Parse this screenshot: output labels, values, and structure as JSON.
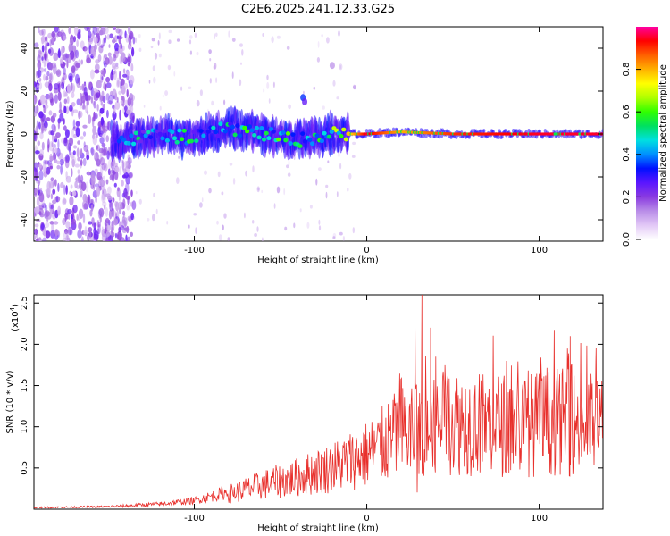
{
  "title": "C2E6.2025.241.12.33.G25",
  "chart_data": [
    {
      "type": "heatmap",
      "name": "spectrogram",
      "xlabel": "Height of straight line (km)",
      "ylabel": "Frequency (Hz)",
      "xlim": [
        -193,
        137
      ],
      "ylim": [
        -50,
        50
      ],
      "xticks": [
        -100,
        0,
        100
      ],
      "yticks": [
        -40,
        -20,
        0,
        20,
        40
      ],
      "grid": false,
      "colorbar": {
        "label": "Normalized spectral amplitude",
        "range": [
          0,
          1
        ],
        "ticks": [
          0.0,
          0.2,
          0.4,
          0.6,
          0.8
        ],
        "colors": [
          "#ffffff",
          "#e2c8f6",
          "#b98de8",
          "#8a3be0",
          "#5a16ff",
          "#0010ff",
          "#0090ff",
          "#00e0e0",
          "#00e060",
          "#30ff00",
          "#b0ff00",
          "#ffff00",
          "#ffb000",
          "#ff6000",
          "#ff0000",
          "#ff00a0"
        ]
      },
      "ridge": [
        {
          "x": -140,
          "freq": -3,
          "amp": 0.35
        },
        {
          "x": -120,
          "freq": 0,
          "amp": 0.4
        },
        {
          "x": -100,
          "freq": -2,
          "amp": 0.42
        },
        {
          "x": -80,
          "freq": 3,
          "amp": 0.45
        },
        {
          "x": -60,
          "freq": 0,
          "amp": 0.5
        },
        {
          "x": -40,
          "freq": -3,
          "amp": 0.45
        },
        {
          "x": -20,
          "freq": 0,
          "amp": 0.55
        },
        {
          "x": 0,
          "freq": 0,
          "amp": 0.95
        },
        {
          "x": 20,
          "freq": 1,
          "amp": 0.8
        },
        {
          "x": 50,
          "freq": 0,
          "amp": 0.9
        },
        {
          "x": 100,
          "freq": 0,
          "amp": 0.95
        },
        {
          "x": 137,
          "freq": 0,
          "amp": 0.95
        }
      ]
    },
    {
      "type": "line",
      "name": "snr",
      "xlabel": "Height of straight line (km)",
      "ylabel": "SNR (10 * v/v)",
      "exponent_label": "(x10",
      "exponent": "4",
      "xlim": [
        -193,
        137
      ],
      "ylim": [
        0,
        2.6
      ],
      "xticks": [
        -100,
        0,
        100
      ],
      "yticks": [
        0.5,
        1.0,
        1.5,
        2.0,
        2.5
      ],
      "color": "#e8302c",
      "trend": [
        {
          "x": -193,
          "y": 0.02
        },
        {
          "x": -150,
          "y": 0.03
        },
        {
          "x": -120,
          "y": 0.06
        },
        {
          "x": -100,
          "y": 0.1
        },
        {
          "x": -80,
          "y": 0.2
        },
        {
          "x": -60,
          "y": 0.32
        },
        {
          "x": -40,
          "y": 0.42
        },
        {
          "x": -20,
          "y": 0.55
        },
        {
          "x": 0,
          "y": 0.72
        },
        {
          "x": 10,
          "y": 0.85
        },
        {
          "x": 20,
          "y": 1.0
        },
        {
          "x": 35,
          "y": 1.1
        },
        {
          "x": 50,
          "y": 1.15
        },
        {
          "x": 70,
          "y": 1.12
        },
        {
          "x": 90,
          "y": 1.1
        },
        {
          "x": 110,
          "y": 1.15
        },
        {
          "x": 137,
          "y": 1.1
        }
      ],
      "peaks": [
        {
          "x": 32,
          "y": 2.6
        },
        {
          "x": 28,
          "y": 2.2
        },
        {
          "x": 37,
          "y": 2.2
        },
        {
          "x": 118,
          "y": 2.1
        },
        {
          "x": 133,
          "y": 1.95
        },
        {
          "x": 40,
          "y": 1.85
        }
      ]
    }
  ]
}
